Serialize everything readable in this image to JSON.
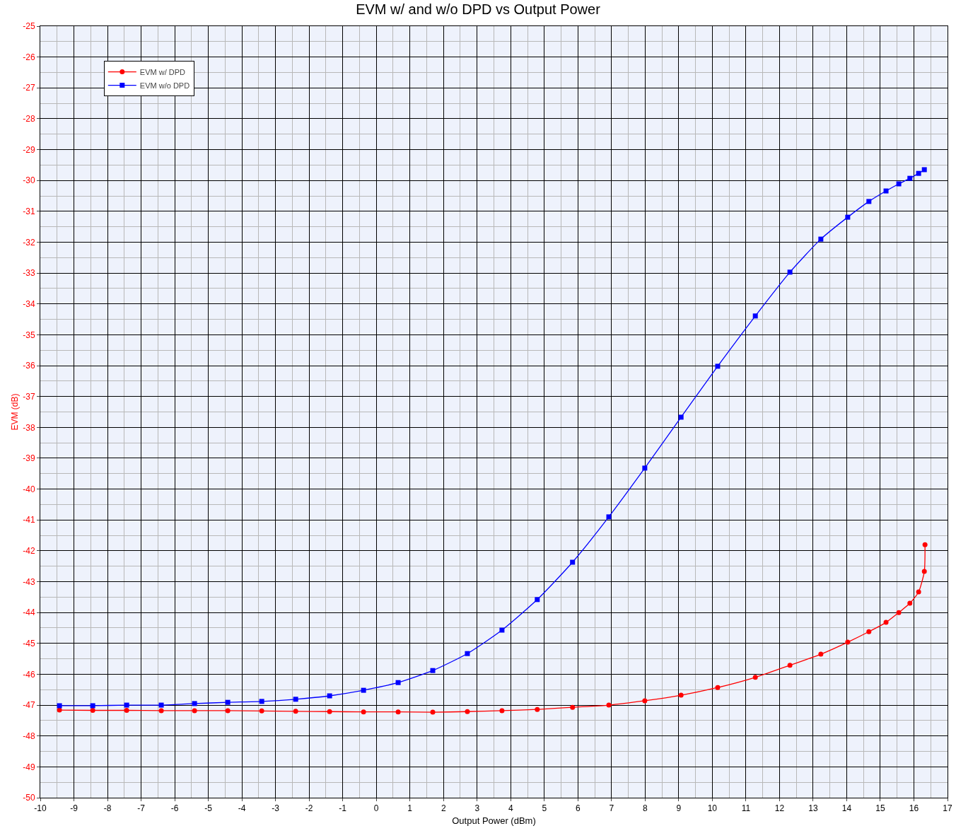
{
  "chart_data": {
    "type": "line",
    "title": "EVM w/ and w/o DPD vs Output Power",
    "xlabel": "Output Power (dBm)",
    "ylabel": "EVM (dB)",
    "xlim": [
      -10,
      17
    ],
    "xticks": [
      -10,
      -9,
      -8,
      -7,
      -6,
      -5,
      -4,
      -3,
      -2,
      -1,
      0,
      1,
      2,
      3,
      4,
      5,
      6,
      7,
      8,
      9,
      10,
      11,
      12,
      13,
      14,
      15,
      16,
      17
    ],
    "ylim": [
      -50,
      -25
    ],
    "yticks": [
      -50,
      -49,
      -48,
      -47,
      -46,
      -45,
      -44,
      -43,
      -42,
      -41,
      -40,
      -39,
      -38,
      -37,
      -36,
      -35,
      -34,
      -33,
      -32,
      -31,
      -30,
      -29,
      -28,
      -27,
      -26,
      -25
    ],
    "grid": true,
    "legend": "top left",
    "line_style": "solid",
    "series": [
      {
        "name": "EVM w/ DPD",
        "color": "#ff0000",
        "marker": "circle",
        "x": [
          -9.43,
          -8.44,
          -7.43,
          -6.4,
          -5.41,
          -4.42,
          -3.41,
          -2.4,
          -1.39,
          -0.38,
          0.65,
          1.68,
          2.71,
          3.74,
          4.79,
          5.84,
          6.92,
          7.99,
          9.07,
          10.16,
          11.28,
          12.31,
          13.23,
          14.03,
          14.66,
          15.17,
          15.55,
          15.88,
          16.14,
          16.31,
          16.33
        ],
        "values": [
          -47.16,
          -47.17,
          -47.17,
          -47.18,
          -47.18,
          -47.18,
          -47.19,
          -47.2,
          -47.21,
          -47.22,
          -47.22,
          -47.23,
          -47.21,
          -47.18,
          -47.14,
          -47.07,
          -47.0,
          -46.86,
          -46.68,
          -46.43,
          -46.1,
          -45.71,
          -45.35,
          -44.96,
          -44.62,
          -44.32,
          -44.0,
          -43.7,
          -43.33,
          -42.67,
          -41.8
        ]
      },
      {
        "name": "EVM w/o DPD",
        "color": "#0000ff",
        "marker": "square",
        "x": [
          -9.43,
          -8.44,
          -7.43,
          -6.4,
          -5.41,
          -4.42,
          -3.41,
          -2.4,
          -1.39,
          -0.38,
          0.65,
          1.68,
          2.71,
          3.74,
          4.79,
          5.84,
          6.92,
          7.99,
          9.07,
          10.16,
          11.28,
          12.31,
          13.23,
          14.03,
          14.66,
          15.17,
          15.55,
          15.88,
          16.14,
          16.31
        ],
        "values": [
          -47.02,
          -47.02,
          -47.0,
          -47.0,
          -46.95,
          -46.91,
          -46.88,
          -46.81,
          -46.7,
          -46.52,
          -46.27,
          -45.88,
          -45.33,
          -44.57,
          -43.58,
          -42.37,
          -40.9,
          -39.32,
          -37.67,
          -36.02,
          -34.39,
          -32.97,
          -31.9,
          -31.19,
          -30.68,
          -30.34,
          -30.11,
          -29.93,
          -29.77,
          -29.65
        ]
      }
    ]
  }
}
